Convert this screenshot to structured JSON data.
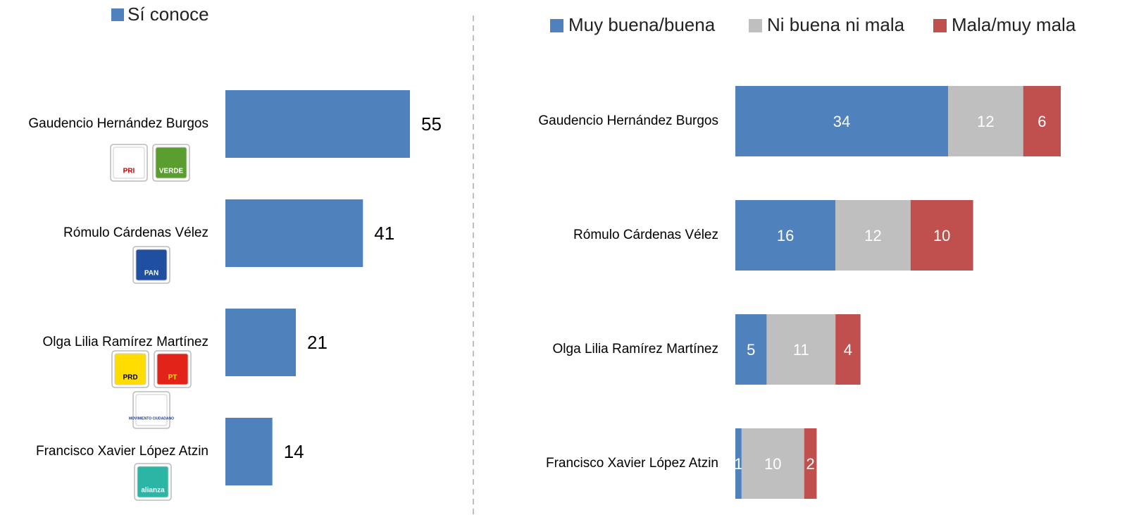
{
  "chart_data": [
    {
      "type": "hbar",
      "legend": "Sí conoce",
      "color": "#4f81bd",
      "categories": [
        "Gaudencio Hernández Burgos",
        "Rómulo Cárdenas Vélez",
        "Olga Lilia Ramírez Martínez",
        "Francisco Xavier López Atzin"
      ],
      "values": [
        55,
        41,
        21,
        14
      ],
      "xlim": [
        0,
        55
      ],
      "logos": [
        [
          "PRI",
          "VERDE"
        ],
        [
          "PAN"
        ],
        [
          "PRD",
          "PT",
          "MOVIMIENTO CIUDADANO"
        ],
        [
          "alianza"
        ]
      ]
    },
    {
      "type": "stacked-hbar",
      "categories": [
        "Gaudencio Hernández Burgos",
        "Rómulo Cárdenas Vélez",
        "Olga Lilia Ramírez Martínez",
        "Francisco Xavier López Atzin"
      ],
      "series": [
        {
          "name": "Muy buena/buena",
          "color": "#4f81bd",
          "values": [
            34,
            16,
            5,
            1
          ]
        },
        {
          "name": "Ni buena ni mala",
          "color": "#bfbfbf",
          "values": [
            12,
            12,
            11,
            10
          ]
        },
        {
          "name": "Mala/muy mala",
          "color": "#c0504d",
          "values": [
            6,
            10,
            4,
            2
          ]
        }
      ],
      "xlim": [
        0,
        52
      ]
    }
  ]
}
